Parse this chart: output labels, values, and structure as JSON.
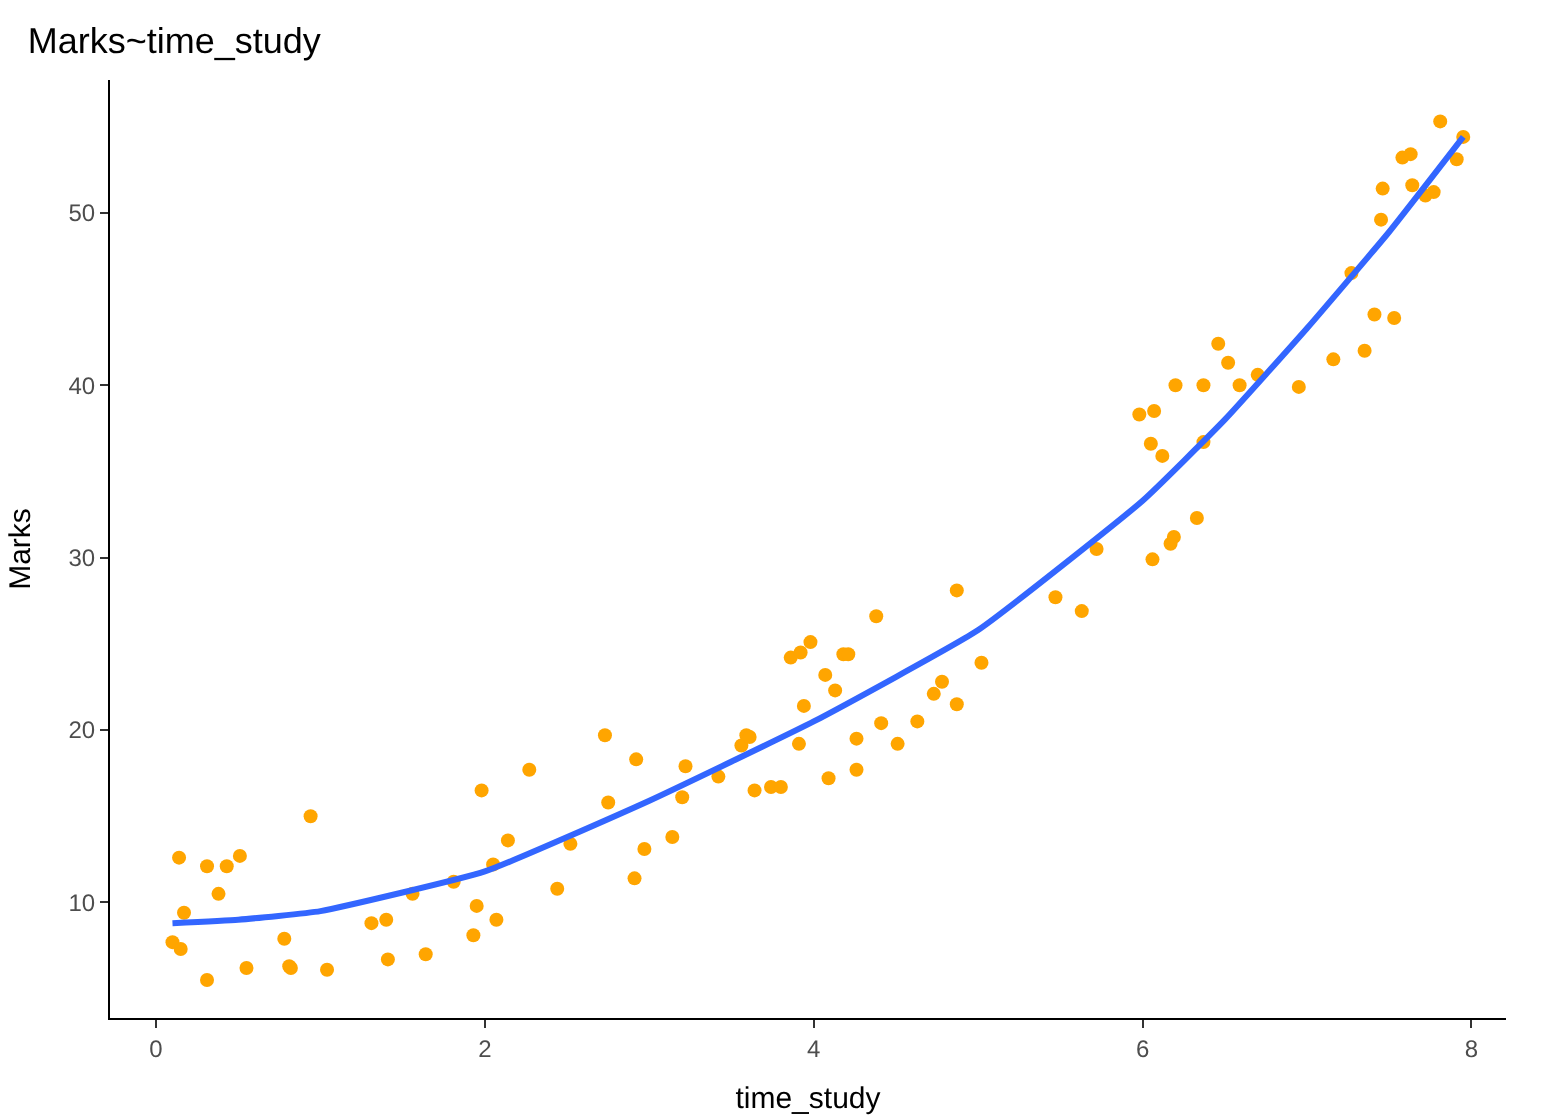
{
  "chart_data": {
    "type": "scatter",
    "title": "Marks~time_study",
    "xlabel": "time_study",
    "ylabel": "Marks",
    "xlim": [
      -0.28,
      8.21
    ],
    "ylim": [
      3.3,
      57.7
    ],
    "xticks": [
      0,
      2,
      4,
      6,
      8
    ],
    "yticks": [
      10,
      20,
      30,
      40,
      50
    ],
    "grid": false,
    "marker": "circle",
    "series": [
      {
        "color": "#ffa500",
        "x": [
          0.1,
          0.15,
          0.14,
          0.17,
          0.31,
          0.31,
          0.38,
          0.43,
          0.51,
          0.55,
          0.78,
          0.81,
          0.82,
          0.94,
          1.04,
          1.31,
          1.4,
          1.41,
          1.56,
          1.64,
          1.81,
          1.93,
          1.95,
          1.98,
          2.05,
          2.07,
          2.14,
          2.27,
          2.44,
          2.52,
          2.73,
          2.75,
          2.91,
          2.92,
          2.97,
          3.14,
          3.2,
          3.22,
          3.42,
          3.56,
          3.59,
          3.61,
          3.64,
          3.74,
          3.8,
          3.86,
          3.91,
          3.92,
          3.94,
          3.98,
          4.07,
          4.09,
          4.13,
          4.18,
          4.21,
          4.26,
          4.26,
          4.38,
          4.41,
          4.51,
          4.63,
          4.73,
          4.78,
          4.87,
          4.87,
          5.02,
          5.47,
          5.63,
          5.72,
          5.98,
          6.05,
          6.06,
          6.07,
          6.12,
          6.17,
          6.19,
          6.2,
          6.33,
          6.37,
          6.37,
          6.46,
          6.52,
          6.59,
          6.7,
          6.95,
          7.16,
          7.27,
          7.35,
          7.41,
          7.45,
          7.46,
          7.53,
          7.58,
          7.63,
          7.64,
          7.72,
          7.77,
          7.81,
          7.91,
          7.95
        ],
        "values": [
          7.7,
          7.3,
          12.6,
          9.4,
          5.5,
          12.1,
          10.5,
          12.1,
          12.7,
          6.2,
          7.9,
          6.3,
          6.2,
          15.0,
          6.1,
          8.8,
          9.0,
          6.7,
          10.5,
          7.0,
          11.2,
          8.1,
          9.8,
          16.5,
          12.2,
          9.0,
          13.6,
          17.7,
          10.8,
          13.4,
          19.7,
          15.8,
          11.4,
          18.3,
          13.1,
          13.8,
          16.1,
          17.9,
          17.3,
          19.1,
          19.7,
          19.6,
          16.5,
          16.7,
          16.7,
          24.2,
          19.2,
          24.5,
          21.4,
          25.1,
          23.2,
          17.2,
          22.3,
          24.4,
          24.4,
          19.5,
          17.7,
          26.6,
          20.4,
          19.2,
          20.5,
          22.1,
          22.8,
          28.1,
          21.5,
          23.9,
          27.7,
          26.9,
          30.5,
          38.3,
          36.6,
          29.9,
          38.5,
          35.9,
          30.8,
          31.2,
          40.0,
          32.3,
          40.0,
          36.7,
          42.4,
          41.3,
          40.0,
          40.6,
          39.9,
          41.5,
          46.5,
          42.0,
          44.1,
          49.6,
          51.4,
          43.9,
          53.2,
          53.4,
          51.6,
          51.0,
          51.2,
          55.3,
          53.1,
          54.4
        ]
      },
      {
        "type": "line",
        "color": "#3366ff",
        "marker": "none",
        "x": [
          0.1,
          0.5,
          1,
          2,
          3,
          4,
          5,
          6,
          6.5,
          7,
          7.5,
          7.95
        ],
        "values": [
          8.8,
          9.0,
          9.5,
          11.8,
          15.9,
          20.5,
          25.8,
          33.3,
          38.0,
          43.3,
          48.9,
          54.4
        ]
      }
    ]
  }
}
